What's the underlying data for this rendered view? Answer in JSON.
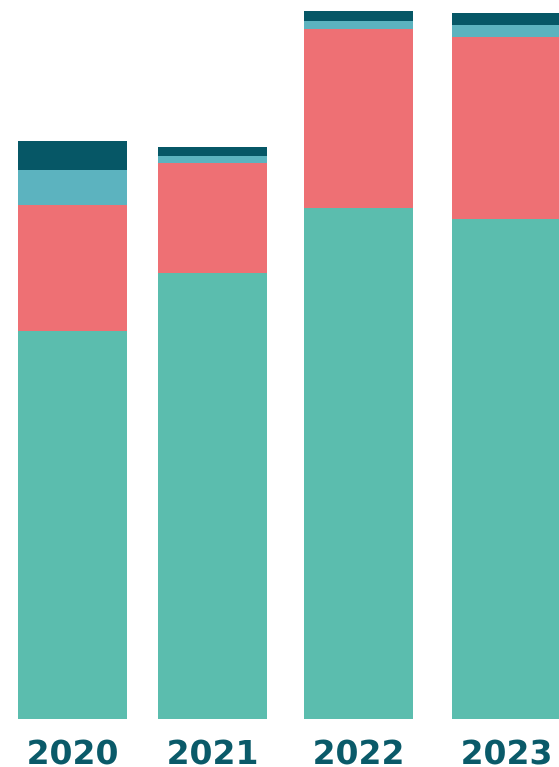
{
  "chart_data": {
    "type": "bar",
    "stacked": true,
    "categories": [
      "2020",
      "2021",
      "2022",
      "2023"
    ],
    "series": [
      {
        "color": "#5bbdae",
        "values": [
          388,
          446,
          511,
          500
        ]
      },
      {
        "color": "#ee7074",
        "values": [
          126,
          110,
          179,
          182
        ]
      },
      {
        "color": "#5cb3bf",
        "values": [
          35,
          7,
          8,
          12
        ]
      },
      {
        "color": "#065766",
        "values": [
          29,
          9,
          10,
          12
        ]
      }
    ],
    "ylim": [
      0,
      720
    ],
    "grid": false,
    "legend": "none",
    "label_color": "#0a5a69"
  }
}
